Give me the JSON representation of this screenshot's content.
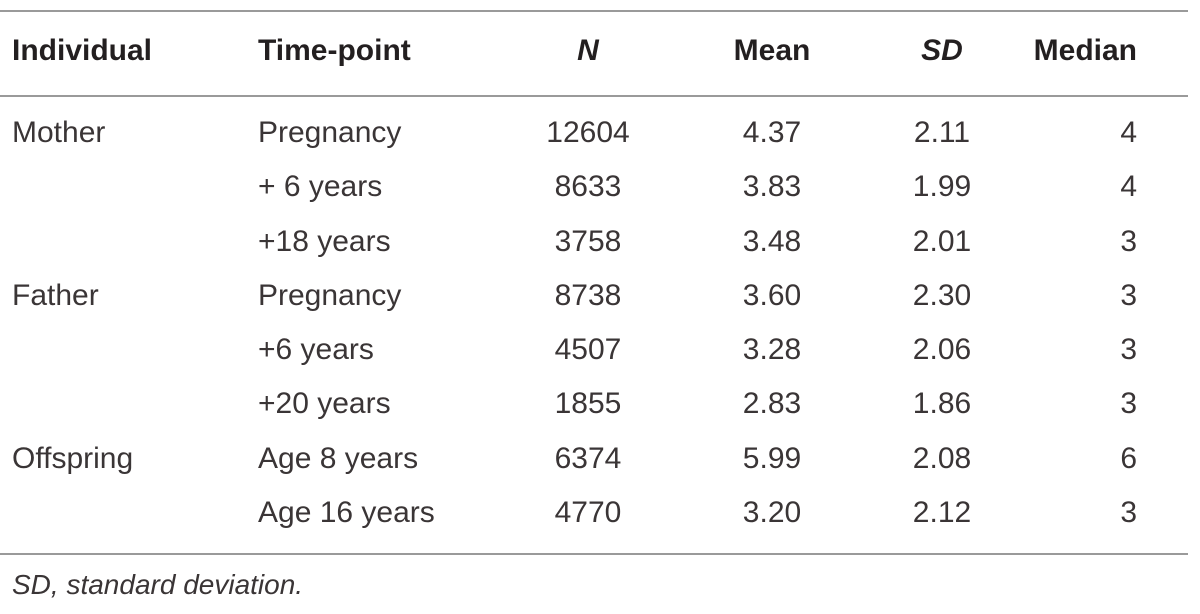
{
  "table": {
    "headers": [
      {
        "key": "individual",
        "label": "Individual",
        "italic": false
      },
      {
        "key": "timepoint",
        "label": "Time-point",
        "italic": false
      },
      {
        "key": "n",
        "label": "N",
        "italic": true
      },
      {
        "key": "mean",
        "label": "Mean",
        "italic": false
      },
      {
        "key": "sd",
        "label": "SD",
        "italic": true
      },
      {
        "key": "median",
        "label": "Median",
        "italic": false
      }
    ],
    "rows": [
      {
        "individual": "Mother",
        "timepoint": "Pregnancy",
        "n": "12604",
        "mean": "4.37",
        "sd": "2.11",
        "median": "4"
      },
      {
        "individual": "",
        "timepoint": "+ 6 years",
        "n": "8633",
        "mean": "3.83",
        "sd": "1.99",
        "median": "4"
      },
      {
        "individual": "",
        "timepoint": "+18 years",
        "n": "3758",
        "mean": "3.48",
        "sd": "2.01",
        "median": "3"
      },
      {
        "individual": "Father",
        "timepoint": "Pregnancy",
        "n": "8738",
        "mean": "3.60",
        "sd": "2.30",
        "median": "3"
      },
      {
        "individual": "",
        "timepoint": "+6 years",
        "n": "4507",
        "mean": "3.28",
        "sd": "2.06",
        "median": "3"
      },
      {
        "individual": "",
        "timepoint": "+20 years",
        "n": "1855",
        "mean": "2.83",
        "sd": "1.86",
        "median": "3"
      },
      {
        "individual": "Offspring",
        "timepoint": "Age 8 years",
        "n": "6374",
        "mean": "5.99",
        "sd": "2.08",
        "median": "6"
      },
      {
        "individual": "",
        "timepoint": "Age 16 years",
        "n": "4770",
        "mean": "3.20",
        "sd": "2.12",
        "median": "3"
      }
    ]
  },
  "footnote": "SD, standard deviation.",
  "colors": {
    "text": "#231f20",
    "rule": "#9a9a9a"
  }
}
